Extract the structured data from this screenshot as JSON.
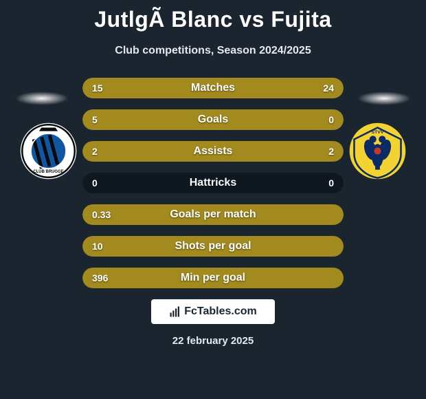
{
  "title": "JutlgÃ  Blanc vs Fujita",
  "subtitle": "Club competitions, Season 2024/2025",
  "date": "22 february 2025",
  "branding_text": "FcTables.com",
  "colors": {
    "background": "#1a2530",
    "bar_track": "#0f1820",
    "bar_left_fill": "#a28a1f",
    "bar_right_fill": "#a28a1f",
    "bar_full": "#a28a1f",
    "text": "#ffffff"
  },
  "teams": {
    "left": {
      "name": "Club Brugge",
      "badge_bg": "#ffffff",
      "stripes": "#0a0a0a",
      "accent": "#1056a3"
    },
    "right": {
      "name": "STVV",
      "badge_bg": "#f3d331",
      "eagle": "#0b2a66",
      "accent": "#c0392b"
    }
  },
  "stats": [
    {
      "label": "Matches",
      "left_value": "15",
      "right_value": "24",
      "left_pct": 38,
      "right_pct": 62,
      "show_right": true
    },
    {
      "label": "Goals",
      "left_value": "5",
      "right_value": "0",
      "left_pct": 100,
      "right_pct": 0,
      "show_right": true
    },
    {
      "label": "Assists",
      "left_value": "2",
      "right_value": "2",
      "left_pct": 50,
      "right_pct": 50,
      "show_right": true
    },
    {
      "label": "Hattricks",
      "left_value": "0",
      "right_value": "0",
      "left_pct": 0,
      "right_pct": 0,
      "show_right": true
    },
    {
      "label": "Goals per match",
      "left_value": "0.33",
      "right_value": "",
      "left_pct": 100,
      "right_pct": 0,
      "show_right": false
    },
    {
      "label": "Shots per goal",
      "left_value": "10",
      "right_value": "",
      "left_pct": 100,
      "right_pct": 0,
      "show_right": false
    },
    {
      "label": "Min per goal",
      "left_value": "396",
      "right_value": "",
      "left_pct": 100,
      "right_pct": 0,
      "show_right": false
    }
  ]
}
